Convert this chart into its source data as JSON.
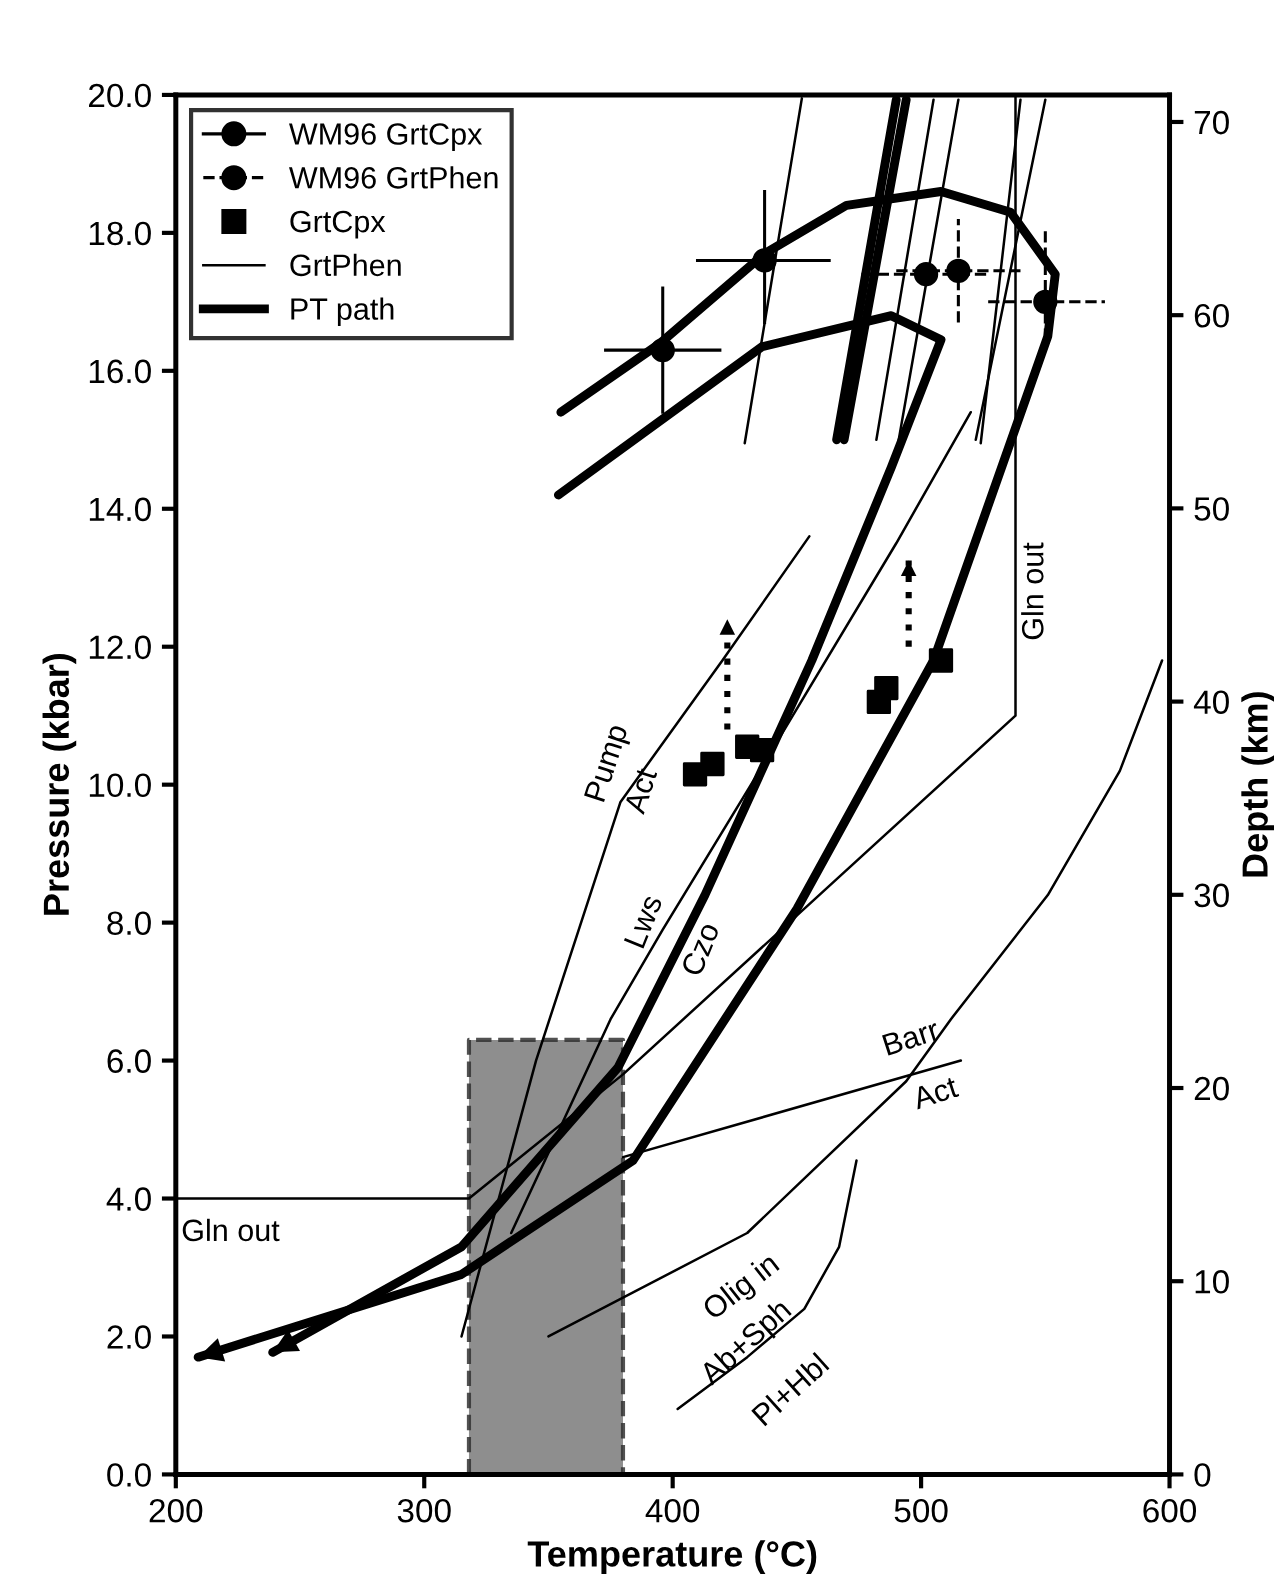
{
  "chart_data": {
    "type": "line",
    "xlabel": "Temperature (°C)",
    "ylabel": "Pressure (kbar)",
    "y2label": "Depth (km)",
    "xlim": [
      200,
      600
    ],
    "xticks": [
      200,
      300,
      400,
      500,
      600
    ],
    "ylim": [
      0,
      20
    ],
    "yticks": [
      {
        "value": 0,
        "label": "0.0"
      },
      {
        "value": 2,
        "label": "2.0"
      },
      {
        "value": 4,
        "label": "4.0"
      },
      {
        "value": 6,
        "label": "6.0"
      },
      {
        "value": 8,
        "label": "8.0"
      },
      {
        "value": 10,
        "label": "10.0"
      },
      {
        "value": 12,
        "label": "12.0"
      },
      {
        "value": 14,
        "label": "14.0"
      },
      {
        "value": 16,
        "label": "16.0"
      },
      {
        "value": 18,
        "label": "18.0"
      },
      {
        "value": 20,
        "label": "20.0"
      }
    ],
    "y2lim": [
      0,
      71.4
    ],
    "y2ticks": [
      0,
      10,
      20,
      30,
      40,
      50,
      60,
      70
    ],
    "grid": false,
    "legend": "top left",
    "series": [
      {
        "name": "WM96 GrtCpx",
        "type": "scatter",
        "color": "#000000",
        "marker": "circle",
        "line_style": "solid",
        "x": [
          396,
          437
        ],
        "values": [
          16.3,
          17.6
        ],
        "errors": [
          [
            15.4,
            17.2
          ],
          [
            16.7,
            18.6
          ]
        ],
        "xerrors": [
          [
            373,
            419
          ],
          [
            410,
            463
          ]
        ]
      },
      {
        "name": "WM96 GrtPhen",
        "type": "scatter",
        "color": "#000000",
        "marker": "circle",
        "line_style": "dashed",
        "x": [
          502,
          515,
          550
        ],
        "values": [
          17.4,
          17.45,
          17.0
        ],
        "errors": [
          null,
          [
            16.7,
            18.2
          ],
          [
            16.45,
            18.05
          ]
        ],
        "xerrors": [
          [
            476,
            528
          ],
          [
            490,
            540
          ],
          [
            527,
            574
          ]
        ]
      },
      {
        "name": "GrtCpx",
        "type": "scatter",
        "color": "#000000",
        "marker": "square",
        "x": [
          409,
          416,
          430,
          436,
          483,
          486,
          508
        ],
        "values": [
          10.15,
          10.3,
          10.55,
          10.5,
          11.2,
          11.4,
          11.8
        ]
      },
      {
        "name": "GrtPhen",
        "color": "#000000",
        "line_style": "solid",
        "x": [
          452,
          429
        ],
        "values": [
          19.95,
          14.95
        ]
      },
      {
        "name": "PT path",
        "color": "#000000",
        "line_style": "solid",
        "x": [
          355,
          395,
          437,
          470,
          508,
          536,
          554,
          551,
          505,
          450,
          384,
          315,
          209
        ],
        "values": [
          15.4,
          16.4,
          17.7,
          18.4,
          18.6,
          18.3,
          17.4,
          16.5,
          11.8,
          8.2,
          4.55,
          2.9,
          1.7
        ]
      },
      {
        "color": "#000000",
        "line_style": "solid",
        "x": [
          354,
          436,
          488,
          508,
          488,
          456,
          413,
          378,
          315,
          239
        ],
        "values": [
          14.2,
          16.35,
          16.8,
          16.45,
          14.6,
          11.8,
          8.4,
          5.9,
          3.3,
          1.77
        ]
      },
      {
        "type": "area",
        "color": "#7a7a7a",
        "line_style": "dashed",
        "x": [
          318,
          380
        ],
        "values": [
          6.3,
          6.3
        ]
      },
      {
        "color": "#000000",
        "line_style": "solid",
        "x": [
          200,
          318,
          380,
          538,
          538
        ],
        "values": [
          4.0,
          4.0,
          5.8,
          11.0,
          20.0
        ]
      },
      {
        "color": "#000000",
        "line_style": "solid",
        "x": [
          380,
          516
        ],
        "values": [
          4.6,
          6.0
        ]
      },
      {
        "color": "#000000",
        "line_style": "solid",
        "x": [
          350,
          430,
          494,
          512,
          551,
          580,
          597
        ],
        "values": [
          2.0,
          3.5,
          5.7,
          6.6,
          8.4,
          10.2,
          11.8
        ]
      },
      {
        "color": "#000000",
        "line_style": "solid",
        "x": [
          402,
          430,
          453,
          467,
          474
        ],
        "values": [
          0.95,
          1.7,
          2.4,
          3.3,
          4.55
        ]
      },
      {
        "color": "#000000",
        "line_style": "solid",
        "x": [
          315,
          345,
          379,
          420,
          455
        ],
        "values": [
          2.0,
          6.0,
          9.75,
          11.8,
          13.6
        ]
      },
      {
        "color": "#000000",
        "line_style": "solid",
        "x": [
          335,
          375,
          396,
          440,
          490,
          520
        ],
        "values": [
          3.5,
          6.6,
          7.9,
          10.5,
          13.5,
          15.4
        ]
      },
      {
        "color": "#000000",
        "line_style": "solid",
        "x": [
          494,
          469
        ],
        "values": [
          19.93,
          15.0
        ]
      },
      {
        "color": "#000000",
        "line_style": "solid",
        "x": [
          490,
          466
        ],
        "values": [
          19.93,
          15.0
        ]
      },
      {
        "color": "#000000",
        "line_style": "solid",
        "x": [
          505,
          482
        ],
        "values": [
          19.93,
          15.0
        ]
      },
      {
        "color": "#000000",
        "line_style": "solid",
        "x": [
          515,
          491
        ],
        "values": [
          19.93,
          15.0
        ]
      },
      {
        "color": "#000000",
        "line_style": "solid",
        "x": [
          540,
          524
        ],
        "values": [
          19.93,
          14.95
        ]
      },
      {
        "color": "#000000",
        "line_style": "solid",
        "x": [
          550,
          522
        ],
        "values": [
          19.93,
          15.0
        ]
      },
      {
        "color": "#000000",
        "line_style": "dotted",
        "x": [
          422,
          422
        ],
        "values": [
          10.8,
          12.4
        ]
      },
      {
        "color": "#000000",
        "line_style": "dotted",
        "x": [
          495,
          495
        ],
        "values": [
          12.0,
          13.25
        ]
      }
    ],
    "annotations": [
      "Pump",
      "Act",
      "Lws",
      "Czo",
      "Gln out",
      "Gln out",
      "Barr",
      "Act",
      "Olig in",
      "Ab+Sph",
      "Pl+Hbl"
    ]
  }
}
